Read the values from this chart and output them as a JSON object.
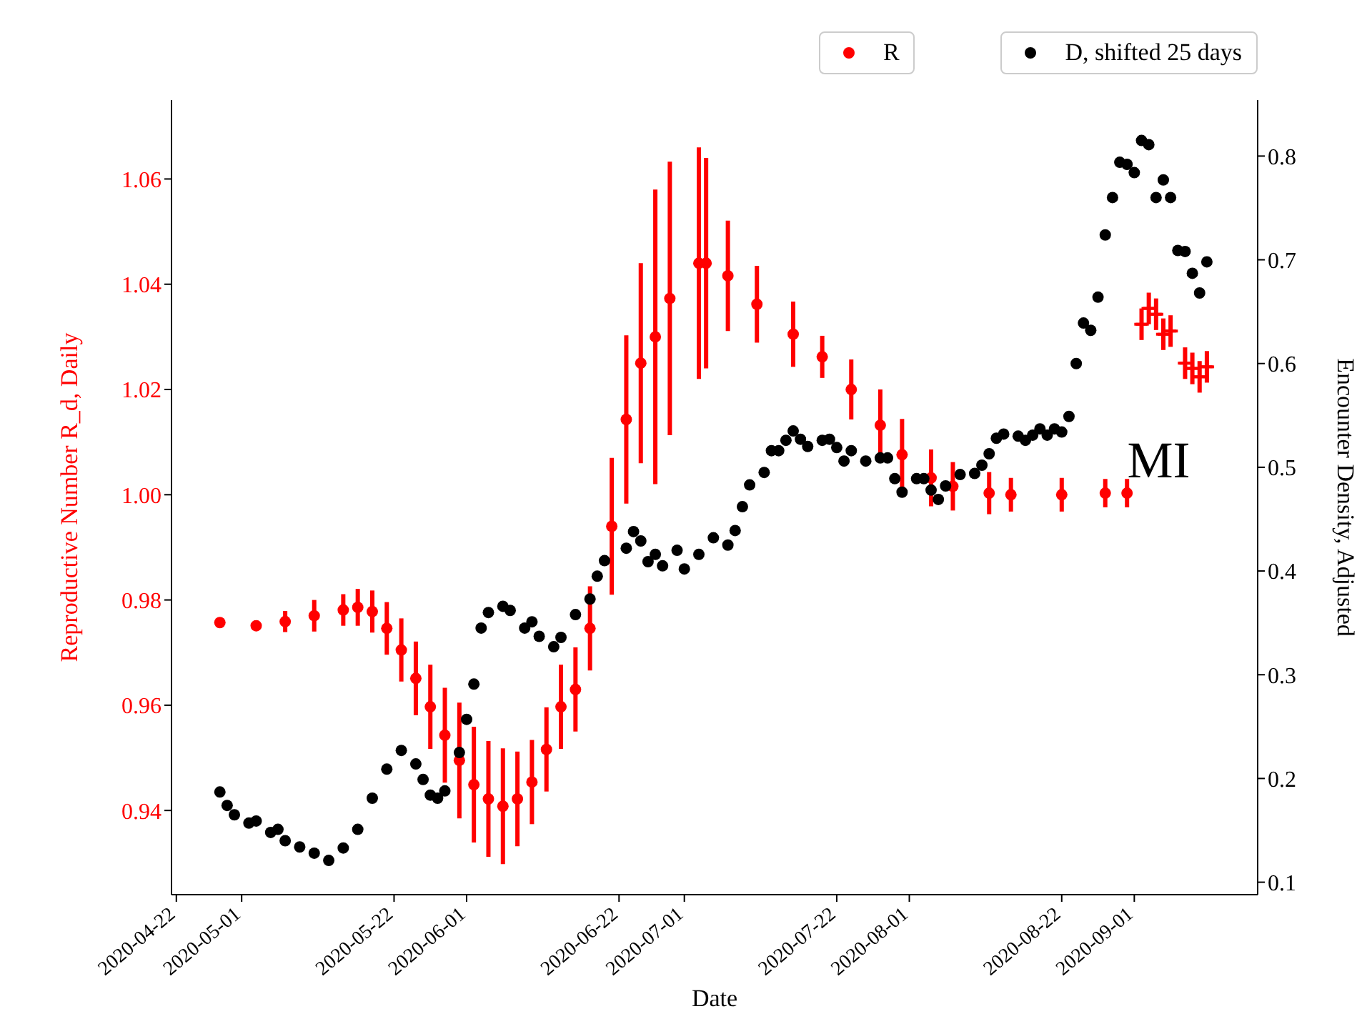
{
  "chart_data": {
    "type": "scatter",
    "xlabel": "Date",
    "ylabel": "Reproductive Number R_d, Daily",
    "y2label": "Encounter Density, Adjusted",
    "annotations": [
      "MI"
    ],
    "xlim": [
      "2020-04-21T08:00",
      "2020-09-18"
    ],
    "xticks": [
      "2020-04-22",
      "2020-05-01",
      "2020-05-22",
      "2020-06-01",
      "2020-06-22",
      "2020-07-01",
      "2020-07-22",
      "2020-08-01",
      "2020-08-22",
      "2020-09-01"
    ],
    "ylim": [
      0.924,
      1.075
    ],
    "yticks": [
      0.94,
      0.96,
      0.98,
      {
        "value": 1,
        "label": "1.00"
      },
      1.02,
      1.04,
      1.06
    ],
    "y2lim": [
      0.088,
      0.854
    ],
    "y2ticks": [
      0.1,
      0.2,
      0.3,
      0.4,
      0.5,
      0.6,
      0.7,
      0.8
    ],
    "legend": "top right",
    "marker": "circle",
    "series": [
      {
        "name": "R",
        "color": "#ff0000",
        "x": [
          "2020-04-28",
          "2020-05-03",
          "2020-05-07",
          "2020-05-11",
          "2020-05-15",
          "2020-05-17",
          "2020-05-19",
          "2020-05-21",
          "2020-05-23",
          "2020-05-25",
          "2020-05-27",
          "2020-05-29",
          "2020-05-31",
          "2020-06-02",
          "2020-06-04",
          "2020-06-06",
          "2020-06-08",
          "2020-06-10",
          "2020-06-12",
          "2020-06-14",
          "2020-06-16",
          "2020-06-18",
          "2020-06-21",
          "2020-06-23",
          "2020-06-25",
          "2020-06-27",
          "2020-06-29",
          "2020-07-03",
          "2020-07-04",
          "2020-07-07",
          "2020-07-11",
          "2020-07-16",
          "2020-07-20",
          "2020-07-24",
          "2020-07-28",
          "2020-07-31",
          "2020-08-04",
          "2020-08-07",
          "2020-08-12",
          "2020-08-15",
          "2020-08-22",
          "2020-08-28",
          "2020-08-31"
        ],
        "values": [
          0.9757,
          0.9751,
          0.9759,
          0.977,
          0.9781,
          0.9786,
          0.9778,
          0.9746,
          0.9705,
          0.9651,
          0.9597,
          0.9543,
          0.9495,
          0.9449,
          0.9422,
          0.9408,
          0.9422,
          0.9454,
          0.9516,
          0.9597,
          0.963,
          0.9746,
          0.994,
          1.0143,
          1.025,
          1.03,
          1.0373,
          1.044,
          1.044,
          1.0416,
          1.0362,
          1.0305,
          1.0262,
          1.02,
          1.0132,
          1.0076,
          1.0032,
          1.0016,
          1.0003,
          1.0,
          1.0,
          1.0003,
          1.0003
        ],
        "errors": [
          0,
          0.001,
          0.002,
          0.003,
          0.003,
          0.0035,
          0.004,
          0.005,
          0.006,
          0.007,
          0.008,
          0.009,
          0.011,
          0.011,
          0.011,
          0.011,
          0.009,
          0.008,
          0.008,
          0.008,
          0.008,
          0.008,
          0.013,
          0.016,
          0.019,
          0.028,
          0.026,
          0.022,
          0.02,
          0.0105,
          0.0073,
          0.0062,
          0.004,
          0.0057,
          0.0068,
          0.0068,
          0.0054,
          0.0046,
          0.004,
          0.0032,
          0.0032,
          0.0027,
          0.0027
        ]
      },
      {
        "color": "#ff0000",
        "marker": "cross",
        "x": [
          "2020-09-02",
          "2020-09-03",
          "2020-09-04",
          "2020-09-05",
          "2020-09-06",
          "2020-09-08",
          "2020-09-09",
          "2020-09-10",
          "2020-09-11"
        ],
        "values": [
          1.0324,
          1.0354,
          1.0343,
          1.0305,
          1.0311,
          1.025,
          1.024,
          1.0224,
          1.0243
        ],
        "errors": [
          0.003,
          0.003,
          0.003,
          0.003,
          0.003,
          0.003,
          0.003,
          0.003,
          0.003
        ],
        "xerrors": [
          1,
          1,
          1,
          1,
          1,
          1,
          1,
          1,
          1
        ]
      },
      {
        "name": "D, shifted 25 days",
        "color": "#000000",
        "axis": "y2",
        "x": [
          "2020-04-28",
          "2020-04-29",
          "2020-04-30",
          "2020-05-02",
          "2020-05-03",
          "2020-05-05",
          "2020-05-06",
          "2020-05-07",
          "2020-05-09",
          "2020-05-11",
          "2020-05-13",
          "2020-05-15",
          "2020-05-17",
          "2020-05-19",
          "2020-05-21",
          "2020-05-23",
          "2020-05-25",
          "2020-05-26",
          "2020-05-27",
          "2020-05-28",
          "2020-05-29",
          "2020-05-31",
          "2020-06-01",
          "2020-06-02",
          "2020-06-03",
          "2020-06-04",
          "2020-06-06",
          "2020-06-07",
          "2020-06-09",
          "2020-06-10",
          "2020-06-11",
          "2020-06-13",
          "2020-06-14",
          "2020-06-16",
          "2020-06-18",
          "2020-06-19",
          "2020-06-20",
          "2020-06-23",
          "2020-06-24",
          "2020-06-25",
          "2020-06-26",
          "2020-06-27",
          "2020-06-28",
          "2020-06-30",
          "2020-07-01",
          "2020-07-03",
          "2020-07-05",
          "2020-07-07",
          "2020-07-08",
          "2020-07-09",
          "2020-07-10",
          "2020-07-12",
          "2020-07-13",
          "2020-07-14",
          "2020-07-15",
          "2020-07-16",
          "2020-07-17",
          "2020-07-18",
          "2020-07-20",
          "2020-07-21",
          "2020-07-22",
          "2020-07-23",
          "2020-07-24",
          "2020-07-26",
          "2020-07-28",
          "2020-07-29",
          "2020-07-30",
          "2020-07-31",
          "2020-08-02",
          "2020-08-03",
          "2020-08-04",
          "2020-08-05",
          "2020-08-06",
          "2020-08-08",
          "2020-08-10",
          "2020-08-11",
          "2020-08-12",
          "2020-08-13",
          "2020-08-14",
          "2020-08-16",
          "2020-08-17",
          "2020-08-18",
          "2020-08-19",
          "2020-08-20",
          "2020-08-21",
          "2020-08-22",
          "2020-08-23",
          "2020-08-24",
          "2020-08-25",
          "2020-08-26",
          "2020-08-27",
          "2020-08-28",
          "2020-08-29",
          "2020-08-30",
          "2020-08-31",
          "2020-09-01",
          "2020-09-02",
          "2020-09-03",
          "2020-09-04",
          "2020-09-05",
          "2020-09-06",
          "2020-09-07",
          "2020-09-08",
          "2020-09-09",
          "2020-09-10",
          "2020-09-11"
        ],
        "values": [
          0.187,
          0.174,
          0.165,
          0.157,
          0.159,
          0.148,
          0.151,
          0.14,
          0.134,
          0.128,
          0.121,
          0.133,
          0.151,
          0.181,
          0.209,
          0.227,
          0.214,
          0.199,
          0.184,
          0.181,
          0.188,
          0.225,
          0.257,
          0.291,
          0.345,
          0.36,
          0.366,
          0.362,
          0.345,
          0.351,
          0.337,
          0.327,
          0.336,
          0.358,
          0.373,
          0.395,
          0.41,
          0.422,
          0.438,
          0.429,
          0.409,
          0.416,
          0.405,
          0.42,
          0.402,
          0.416,
          0.432,
          0.425,
          0.439,
          0.462,
          0.483,
          0.495,
          0.516,
          0.516,
          0.526,
          0.535,
          0.527,
          0.52,
          0.526,
          0.527,
          0.519,
          0.506,
          0.516,
          0.506,
          0.509,
          0.509,
          0.489,
          0.476,
          0.489,
          0.489,
          0.478,
          0.469,
          0.482,
          0.493,
          0.494,
          0.502,
          0.513,
          0.528,
          0.532,
          0.53,
          0.526,
          0.531,
          0.537,
          0.531,
          0.537,
          0.534,
          0.549,
          0.6,
          0.639,
          0.632,
          0.664,
          0.724,
          0.76,
          0.794,
          0.792,
          0.784,
          0.815,
          0.811,
          0.76,
          0.777,
          0.76,
          0.709,
          0.708,
          0.687,
          0.668,
          0.698
        ]
      }
    ]
  }
}
